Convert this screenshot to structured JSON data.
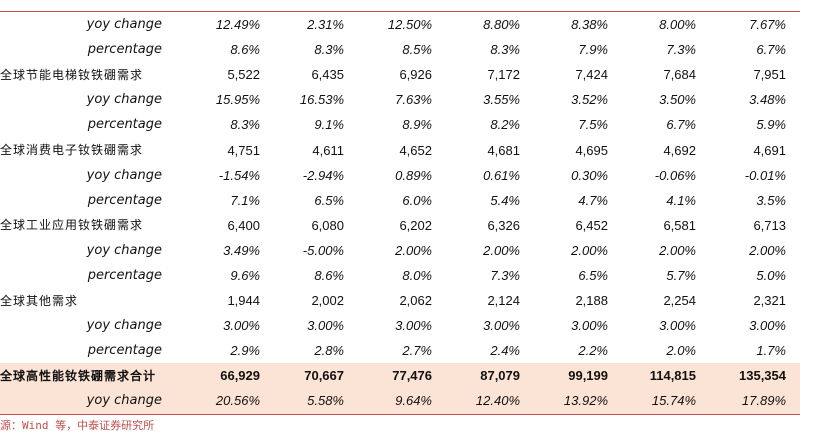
{
  "rows": [
    {
      "label": "yoy change",
      "kind": "sub",
      "values": [
        "12.49%",
        "2.31%",
        "12.50%",
        "8.80%",
        "8.38%",
        "8.00%",
        "7.67%"
      ]
    },
    {
      "label": "percentage",
      "kind": "sub",
      "values": [
        "8.6%",
        "8.3%",
        "8.5%",
        "8.3%",
        "7.9%",
        "7.3%",
        "6.7%"
      ]
    },
    {
      "label": "全球节能电梯钕铁硼需求",
      "kind": "main",
      "values": [
        "5,522",
        "6,435",
        "6,926",
        "7,172",
        "7,424",
        "7,684",
        "7,951"
      ]
    },
    {
      "label": "yoy change",
      "kind": "sub",
      "values": [
        "15.95%",
        "16.53%",
        "7.63%",
        "3.55%",
        "3.52%",
        "3.50%",
        "3.48%"
      ]
    },
    {
      "label": "percentage",
      "kind": "sub",
      "values": [
        "8.3%",
        "9.1%",
        "8.9%",
        "8.2%",
        "7.5%",
        "6.7%",
        "5.9%"
      ]
    },
    {
      "label": "全球消费电子钕铁硼需求",
      "kind": "main",
      "values": [
        "4,751",
        "4,611",
        "4,652",
        "4,681",
        "4,695",
        "4,692",
        "4,691"
      ]
    },
    {
      "label": "yoy change",
      "kind": "sub",
      "values": [
        "-1.54%",
        "-2.94%",
        "0.89%",
        "0.61%",
        "0.30%",
        "-0.06%",
        "-0.01%"
      ]
    },
    {
      "label": "percentage",
      "kind": "sub",
      "values": [
        "7.1%",
        "6.5%",
        "6.0%",
        "5.4%",
        "4.7%",
        "4.1%",
        "3.5%"
      ]
    },
    {
      "label": "全球工业应用钕铁硼需求",
      "kind": "main",
      "values": [
        "6,400",
        "6,080",
        "6,202",
        "6,326",
        "6,452",
        "6,581",
        "6,713"
      ]
    },
    {
      "label": "yoy change",
      "kind": "sub",
      "values": [
        "3.49%",
        "-5.00%",
        "2.00%",
        "2.00%",
        "2.00%",
        "2.00%",
        "2.00%"
      ]
    },
    {
      "label": "percentage",
      "kind": "sub",
      "values": [
        "9.6%",
        "8.6%",
        "8.0%",
        "7.3%",
        "6.5%",
        "5.7%",
        "5.0%"
      ]
    },
    {
      "label": "全球其他需求",
      "kind": "main",
      "values": [
        "1,944",
        "2,002",
        "2,062",
        "2,124",
        "2,188",
        "2,254",
        "2,321"
      ]
    },
    {
      "label": "yoy change",
      "kind": "sub",
      "values": [
        "3.00%",
        "3.00%",
        "3.00%",
        "3.00%",
        "3.00%",
        "3.00%",
        "3.00%"
      ]
    },
    {
      "label": "percentage",
      "kind": "sub",
      "values": [
        "2.9%",
        "2.8%",
        "2.7%",
        "2.4%",
        "2.2%",
        "2.0%",
        "1.7%"
      ]
    },
    {
      "label": "全球高性能钕铁硼需求合计",
      "kind": "total",
      "values": [
        "66,929",
        "70,667",
        "77,476",
        "87,079",
        "99,199",
        "114,815",
        "135,354"
      ]
    },
    {
      "label": "yoy change",
      "kind": "total-sub",
      "values": [
        "20.56%",
        "5.58%",
        "9.64%",
        "12.40%",
        "13.92%",
        "15.74%",
        "17.89%"
      ]
    }
  ],
  "source": "源：Wind 等，中泰证券研究所"
}
